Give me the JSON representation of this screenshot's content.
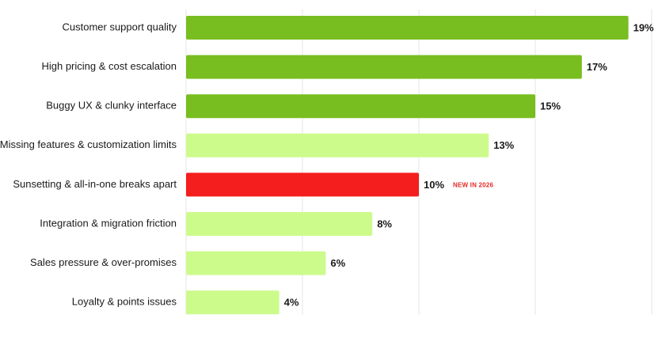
{
  "chart_data": {
    "type": "bar",
    "orientation": "horizontal",
    "categories": [
      "Customer support quality",
      "High pricing & cost escalation",
      "Buggy UX & clunky interface",
      "Missing features & customization limits",
      "Sunsetting & all-in-one breaks apart",
      "Integration & migration friction",
      "Sales pressure & over-promises",
      "Loyalty & points issues"
    ],
    "values": [
      19,
      17,
      15,
      13,
      10,
      8,
      6,
      4
    ],
    "value_labels": [
      "19%",
      "17%",
      "15%",
      "13%",
      "10%",
      "8%",
      "6%",
      "4%"
    ],
    "colors": [
      "#78be20",
      "#78be20",
      "#78be20",
      "#ccfb8c",
      "#f41e1e",
      "#ccfb8c",
      "#ccfb8c",
      "#ccfb8c"
    ],
    "annotations": [
      {
        "category_index": 4,
        "text": "NEW IN 2026",
        "color": "#e52a25"
      }
    ],
    "xlim": [
      0,
      20
    ],
    "grid": true,
    "title": "",
    "xlabel": "",
    "ylabel": ""
  }
}
